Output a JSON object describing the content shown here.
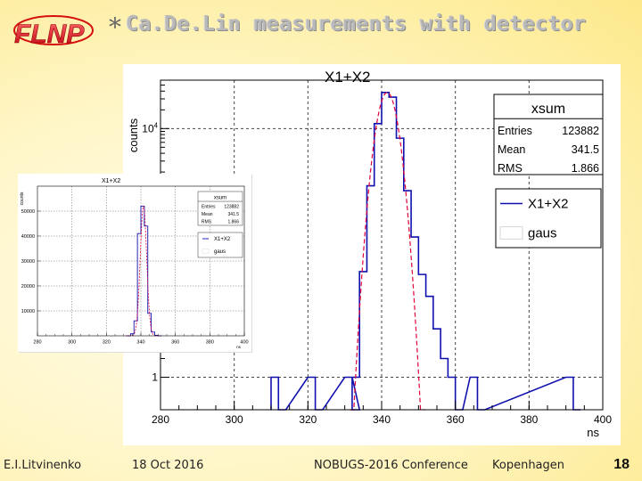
{
  "logo": {
    "text": "FLNP"
  },
  "slide": {
    "bullet": "*",
    "title": "Ca.De.Lin measurements with detector",
    "number": "18"
  },
  "footer": {
    "author": "E.I.Litvinenko",
    "date": "18 Oct 2016",
    "conference": "NOBUGS-2016 Conference",
    "location": "Kopenhagen"
  },
  "colors": {
    "histogram": "#1010b0",
    "fit": "#e0003a",
    "grid": "#444444"
  },
  "chart_data": [
    {
      "type": "histogram",
      "title": "X1+X2",
      "xlabel": "ns",
      "ylabel": "counts",
      "xlim": [
        280,
        400
      ],
      "y_scale": "log",
      "grid": true,
      "x_ticks": [
        280,
        300,
        320,
        340,
        360,
        380,
        400
      ],
      "y_ticks": [
        {
          "label": "1",
          "value": 1
        },
        {
          "label": "10",
          "sup": "4",
          "value": 10000
        }
      ],
      "stats": {
        "title": "xsum",
        "rows": [
          {
            "label": "Entries",
            "value": "123882"
          },
          {
            "label": "Mean",
            "value": "341.5"
          },
          {
            "label": "RMS",
            "value": "1.866"
          }
        ]
      },
      "legend": {
        "position": "top-right",
        "entries": [
          {
            "label": "X1+X2",
            "style": "line"
          },
          {
            "label": "gaus",
            "style": "box"
          }
        ]
      },
      "bin_width": 2,
      "bins": [
        [
          310,
          1
        ],
        [
          312,
          0
        ],
        [
          320,
          1
        ],
        [
          322,
          0
        ],
        [
          330,
          1
        ],
        [
          332,
          0
        ],
        [
          332,
          1
        ],
        [
          334,
          50
        ],
        [
          336,
          1200
        ],
        [
          338,
          12000
        ],
        [
          340,
          38000
        ],
        [
          342,
          32000
        ],
        [
          344,
          7000
        ],
        [
          346,
          1000
        ],
        [
          348,
          180
        ],
        [
          350,
          45
        ],
        [
          352,
          20
        ],
        [
          354,
          6
        ],
        [
          356,
          2
        ],
        [
          358,
          1
        ],
        [
          360,
          0
        ],
        [
          364,
          1
        ],
        [
          366,
          0
        ],
        [
          390,
          1
        ],
        [
          392,
          0
        ]
      ],
      "fit": {
        "function": "gaus",
        "mean": 341.5,
        "sigma": 1.866,
        "amplitude": 38000
      }
    },
    {
      "type": "histogram",
      "title": "X1+X2",
      "xlabel": "ns",
      "ylabel": "counts",
      "xlim": [
        280,
        400
      ],
      "ylim": [
        0,
        60000
      ],
      "grid": true,
      "x_ticks": [
        280,
        300,
        320,
        340,
        360,
        380,
        400
      ],
      "y_ticks": [
        10000,
        20000,
        30000,
        40000,
        50000
      ],
      "stats": {
        "title": "xsum",
        "rows": [
          {
            "label": "Entries",
            "value": "123882"
          },
          {
            "label": "Mean",
            "value": "341.5"
          },
          {
            "label": "RMS",
            "value": "1.866"
          }
        ]
      },
      "legend": {
        "position": "top-right",
        "entries": [
          {
            "label": "X1+X2",
            "style": "line"
          },
          {
            "label": "gaus",
            "style": "box"
          }
        ]
      },
      "bin_width": 2,
      "bins": [
        [
          332,
          0
        ],
        [
          334,
          800
        ],
        [
          336,
          6000
        ],
        [
          338,
          41000
        ],
        [
          340,
          52000
        ],
        [
          342,
          44000
        ],
        [
          344,
          9000
        ],
        [
          346,
          1500
        ],
        [
          348,
          200
        ],
        [
          350,
          0
        ]
      ],
      "fit": {
        "function": "gaus",
        "mean": 341.5,
        "sigma": 1.866,
        "amplitude": 52000
      }
    }
  ]
}
